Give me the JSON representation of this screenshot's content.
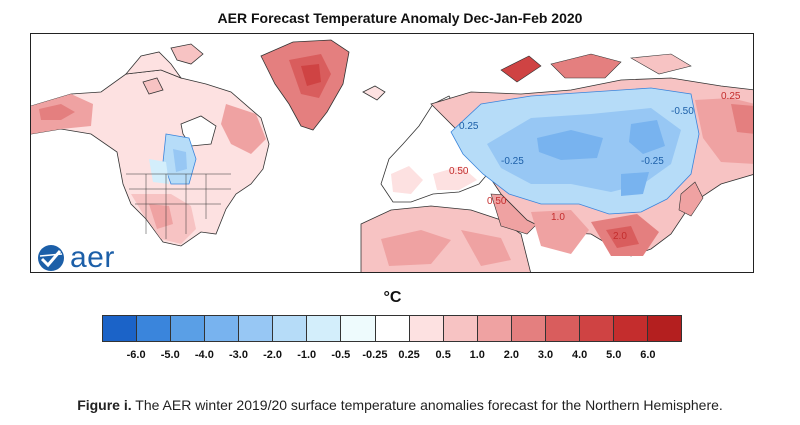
{
  "map": {
    "title": "AER Forecast Temperature Anomaly Dec-Jan-Feb 2020",
    "contour_labels": [
      "0.25",
      "-0.25",
      "-0.50",
      "0.25",
      "0.50",
      "1.0",
      "-0.25",
      "2.0",
      "0.50"
    ]
  },
  "logo": {
    "text": "aer"
  },
  "legend": {
    "unit": "°C",
    "colors": [
      "#1b63c8",
      "#3a85dc",
      "#5a9fe6",
      "#78b3ef",
      "#97c7f4",
      "#b6dcf8",
      "#d3eefb",
      "#eefbfd",
      "#ffffff",
      "#fde1e1",
      "#f7c3c3",
      "#efa2a2",
      "#e47f7f",
      "#d95d5d",
      "#cf4343",
      "#c42d2d",
      "#b41f1f"
    ],
    "ticks": [
      "-6.0",
      "-5.0",
      "-4.0",
      "-3.0",
      "-2.0",
      "-1.0",
      "-0.5",
      "-0.25",
      "0.25",
      "0.5",
      "1.0",
      "2.0",
      "3.0",
      "4.0",
      "5.0",
      "6.0"
    ]
  },
  "caption": {
    "lead": "Figure i.",
    "text": " The AER winter 2019/20 surface temperature anomalies forecast for the Northern Hemisphere."
  }
}
